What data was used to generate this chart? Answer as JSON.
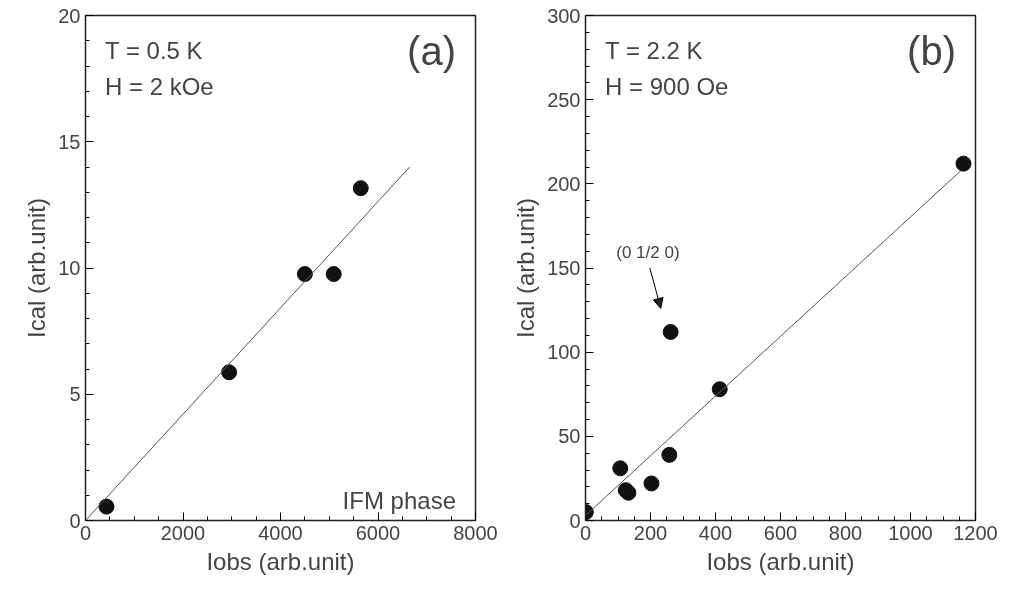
{
  "chart_data": [
    {
      "type": "scatter",
      "xlabel": "Iobs (arb.unit)",
      "ylabel": "Ical (arb.unit)",
      "xlim": [
        0,
        8000
      ],
      "ylim": [
        0,
        20
      ],
      "xticks": [
        0,
        2000,
        4000,
        6000,
        8000
      ],
      "yticks": [
        0,
        5,
        10,
        15,
        20
      ],
      "grid": false,
      "annotations": [
        "T = 0.5 K",
        "H = 2 kOe",
        "(a)",
        "IFM phase"
      ],
      "series": [
        {
          "marker": "circle",
          "color": "#111111",
          "x": [
            430,
            2946,
            4500,
            5092,
            5646
          ],
          "values": [
            0.55,
            5.87,
            9.76,
            9.76,
            13.16
          ]
        },
        {
          "type": "line",
          "color": "#555555",
          "line_style": "solid",
          "x": [
            0,
            6650
          ],
          "values": [
            0,
            14
          ]
        }
      ]
    },
    {
      "type": "scatter",
      "xlabel": "Iobs (arb.unit)",
      "ylabel": "Ical (arb.unit)",
      "xlim": [
        0,
        1200
      ],
      "ylim": [
        0,
        300
      ],
      "xticks": [
        0,
        200,
        400,
        600,
        800,
        1000,
        1200
      ],
      "yticks": [
        0,
        50,
        100,
        150,
        200,
        250,
        300
      ],
      "grid": false,
      "annotations": [
        "T = 2.2 K",
        "H = 900 Oe",
        "(b)",
        "(0 1/2 0)"
      ],
      "series": [
        {
          "marker": "circle",
          "color": "#111111",
          "x": [
            1,
            107,
            124,
            132,
            203,
            258,
            262,
            413,
            1163
          ],
          "values": [
            5,
            31,
            18,
            16.5,
            22,
            39,
            112,
            78,
            212
          ]
        },
        {
          "type": "line",
          "color": "#555555",
          "line_style": "solid",
          "x": [
            0,
            1156
          ],
          "values": [
            3,
            208
          ]
        }
      ]
    }
  ]
}
